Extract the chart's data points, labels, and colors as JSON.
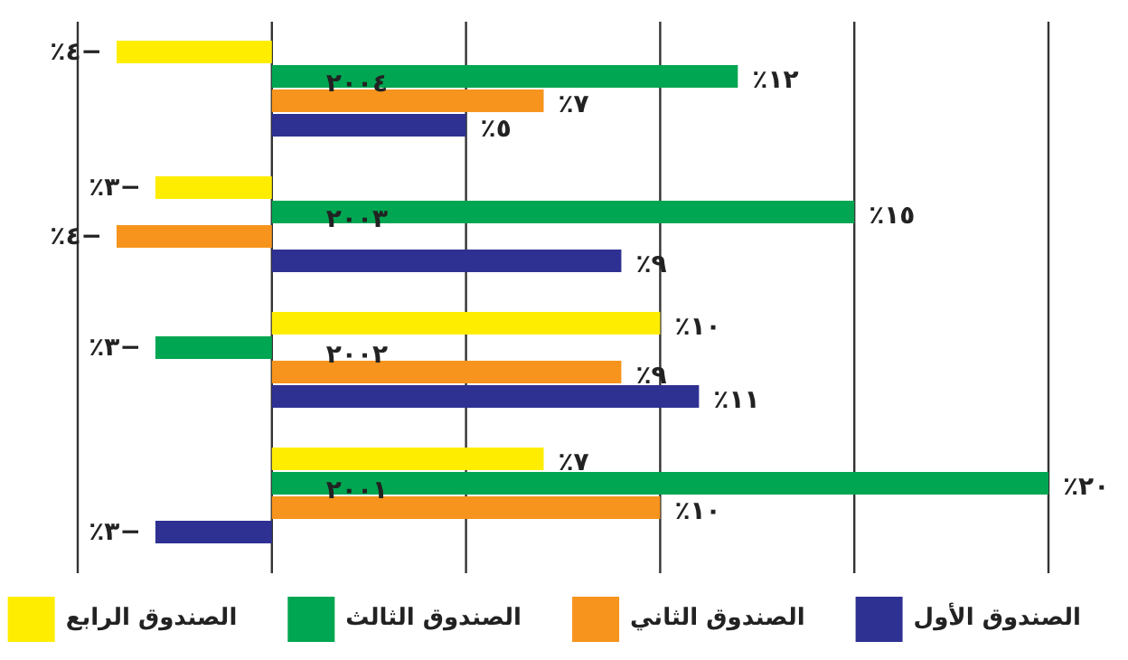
{
  "chart_data": {
    "type": "bar",
    "orientation": "horizontal",
    "categories": [
      "٢٠٠٤",
      "٢٠٠٣",
      "٢٠٠٢",
      "٢٠٠١"
    ],
    "series": [
      {
        "name": "الصندوق الأول",
        "color": "#2e3192",
        "values": [
          5,
          9,
          11,
          -3
        ],
        "value_labels": [
          "٥٪",
          "٩٪",
          "١١٪",
          "−٣٪"
        ]
      },
      {
        "name": "الصندوق الثاني",
        "color": "#f7941d",
        "values": [
          7,
          -4,
          9,
          10
        ],
        "value_labels": [
          "٧٪",
          "−٤٪",
          "٩٪",
          "١٠٪"
        ]
      },
      {
        "name": "الصندوق الثالث",
        "color": "#00a651",
        "values": [
          12,
          15,
          -3,
          20
        ],
        "value_labels": [
          "١٢٪",
          "١٥٪",
          "−٣٪",
          "٢٠٪"
        ]
      },
      {
        "name": "الصندوق الرابع",
        "color": "#ffed00",
        "values": [
          -4,
          -3,
          10,
          7
        ],
        "value_labels": [
          "−٤٪",
          "−٣٪",
          "١٠٪",
          "٧٪"
        ]
      }
    ],
    "xlim": [
      -5,
      20
    ],
    "xticks": [
      {
        "value": -5,
        "label": null
      },
      {
        "value": 0,
        "label": null
      },
      {
        "value": 5,
        "label": null
      },
      {
        "value": 10,
        "label": null
      },
      {
        "value": 15,
        "label": null
      },
      {
        "value": 20,
        "label": null
      }
    ],
    "grid": "x",
    "legend": "bottom"
  }
}
